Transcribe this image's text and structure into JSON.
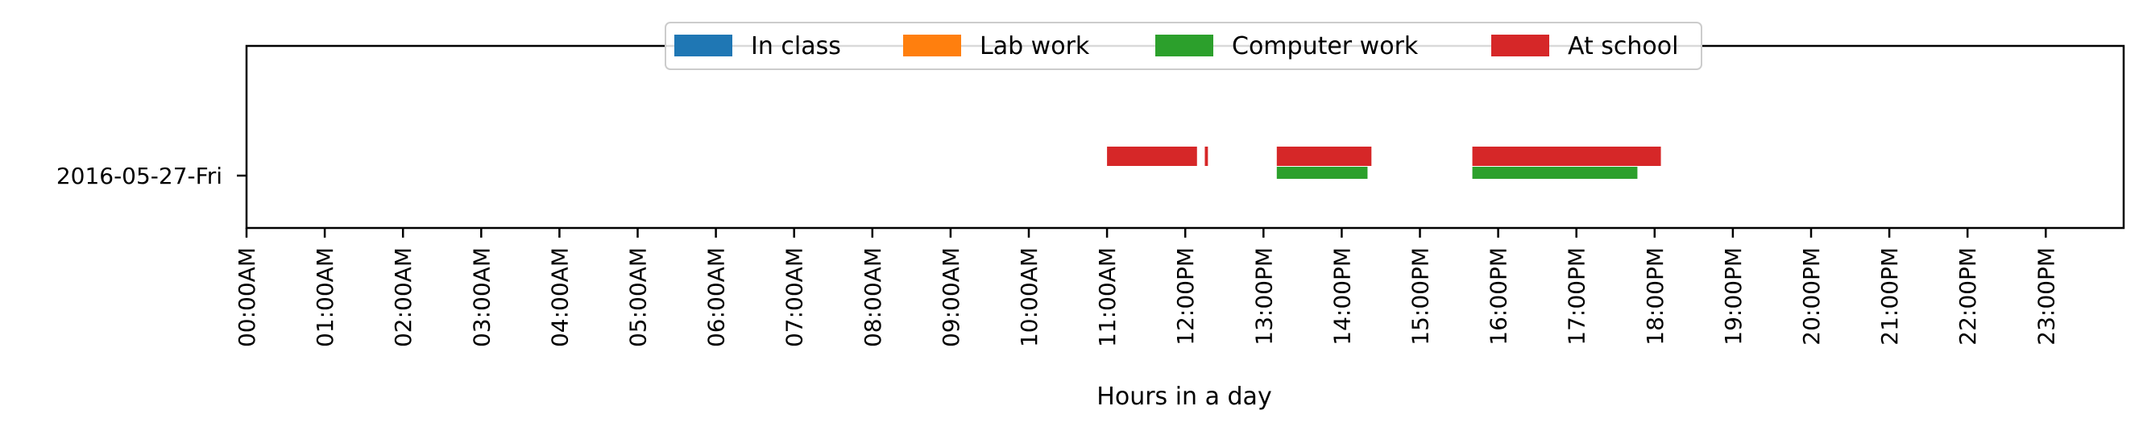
{
  "chart_data": {
    "type": "bar",
    "orientation": "horizontal-timeline",
    "title": "",
    "xlabel": "Hours in a day",
    "ylabel": "",
    "categories": [
      "2016-05-27-Fri"
    ],
    "xlim": [
      0,
      24
    ],
    "x_tick_values": [
      0,
      1,
      2,
      3,
      4,
      5,
      6,
      7,
      8,
      9,
      10,
      11,
      12,
      13,
      14,
      15,
      16,
      17,
      18,
      19,
      20,
      21,
      22,
      23
    ],
    "x_tick_labels": [
      "00:00AM",
      "01:00AM",
      "02:00AM",
      "03:00AM",
      "04:00AM",
      "05:00AM",
      "06:00AM",
      "07:00AM",
      "08:00AM",
      "09:00AM",
      "10:00AM",
      "11:00AM",
      "12:00PM",
      "13:00PM",
      "14:00PM",
      "15:00PM",
      "16:00PM",
      "17:00PM",
      "18:00PM",
      "19:00PM",
      "20:00PM",
      "21:00PM",
      "22:00PM",
      "23:00PM"
    ],
    "grid": false,
    "legend_position": "top-center",
    "series": [
      {
        "name": "In class",
        "color": "#1f77b4",
        "segments": []
      },
      {
        "name": "Lab work",
        "color": "#ff7f0e",
        "segments": []
      },
      {
        "name": "Computer work",
        "color": "#2ca02c",
        "segments": [
          {
            "category": "2016-05-27-Fri",
            "start": 13.17,
            "end": 14.33
          },
          {
            "category": "2016-05-27-Fri",
            "start": 15.67,
            "end": 17.78
          }
        ]
      },
      {
        "name": "At school",
        "color": "#d62728",
        "segments": [
          {
            "category": "2016-05-27-Fri",
            "start": 11.0,
            "end": 12.15
          },
          {
            "category": "2016-05-27-Fri",
            "start": 12.25,
            "end": 12.29
          },
          {
            "category": "2016-05-27-Fri",
            "start": 13.17,
            "end": 14.38
          },
          {
            "category": "2016-05-27-Fri",
            "start": 15.67,
            "end": 18.08
          }
        ]
      }
    ]
  }
}
